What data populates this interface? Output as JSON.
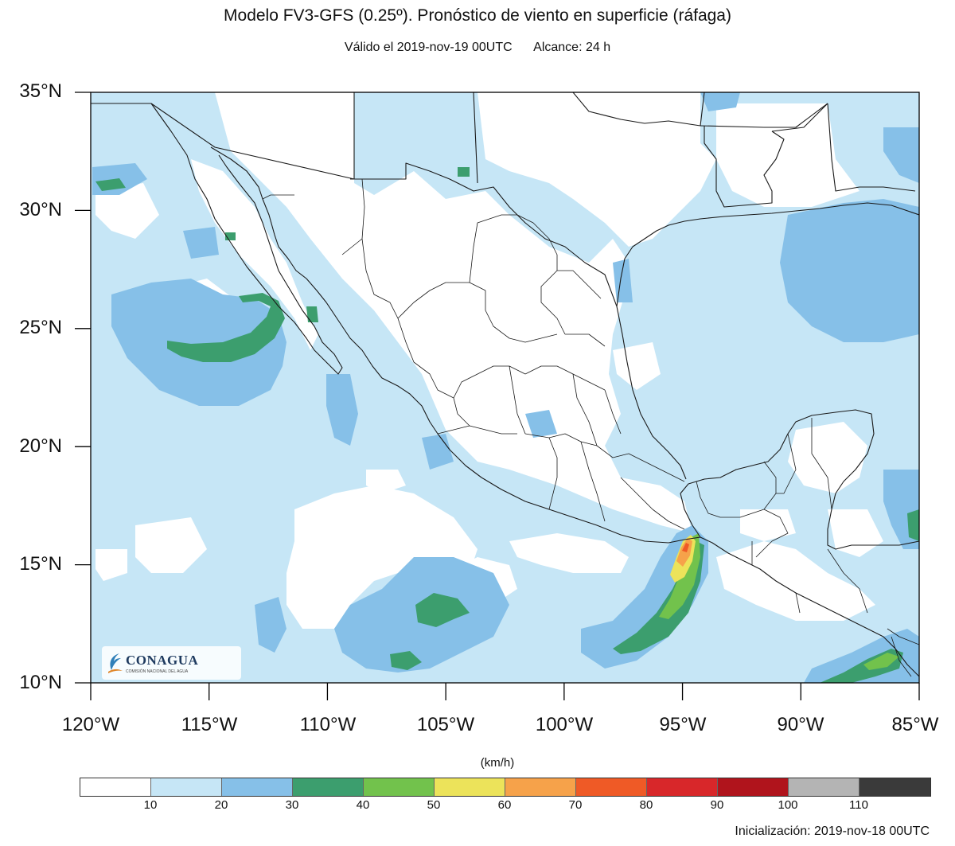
{
  "title": "Modelo FV3-GFS (0.25º). Pronóstico de viento en superficie (ráfaga)",
  "subtitle": {
    "valid": "Válido el 2019-nov-19 00UTC",
    "range": "Alcance: 24 h"
  },
  "map": {
    "lat_labels": [
      "35°N",
      "30°N",
      "25°N",
      "20°N",
      "15°N",
      "10°N"
    ],
    "lon_labels": [
      "120°W",
      "115°W",
      "110°W",
      "105°W",
      "100°W",
      "95°W",
      "90°W",
      "85°W"
    ],
    "extent": {
      "lon_min": -120,
      "lon_max": -85,
      "lat_min": 10,
      "lat_max": 35
    },
    "background_color": "#c6e6f6"
  },
  "colorbar": {
    "units": "(km/h)",
    "ticks": [
      "10",
      "20",
      "30",
      "40",
      "50",
      "60",
      "70",
      "80",
      "90",
      "100",
      "110"
    ],
    "colors": [
      "#ffffff",
      "#c6e6f6",
      "#86c0e8",
      "#3c9e6e",
      "#72c24c",
      "#ece35a",
      "#f6a24a",
      "#ef5a26",
      "#d8272a",
      "#b0141c",
      "#b4b4b4",
      "#3a3a3a"
    ]
  },
  "logo": {
    "name": "CONAGUA",
    "tagline": "COMISIÓN NACIONAL DEL AGUA"
  },
  "footer": {
    "init": "Inicialización: 2019-nov-18 00UTC"
  }
}
